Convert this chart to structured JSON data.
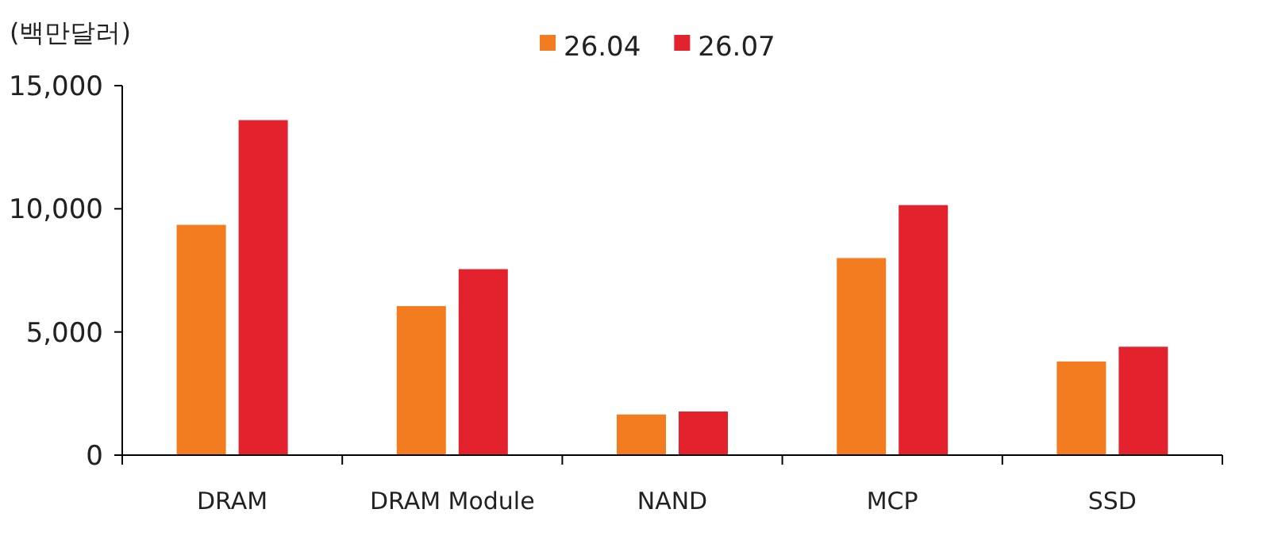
{
  "chart_data": {
    "type": "bar",
    "ylabel": "(백만달러)",
    "categories": [
      "DRAM",
      "DRAM Module",
      "NAND",
      "MCP",
      "SSD"
    ],
    "series": [
      {
        "name": "26.04",
        "color": "#f47c20",
        "values": [
          9350,
          6050,
          1650,
          8000,
          3800
        ]
      },
      {
        "name": "26.07",
        "color": "#e3222d",
        "values": [
          13600,
          7550,
          1770,
          10150,
          4400
        ]
      }
    ],
    "ylim": [
      0,
      15000
    ],
    "yticks": [
      {
        "value": 0,
        "label": "0"
      },
      {
        "value": 5000,
        "label": "5,000"
      },
      {
        "value": 10000,
        "label": "10,000"
      },
      {
        "value": 15000,
        "label": "15,000"
      }
    ],
    "legend": "top",
    "grid": false
  }
}
